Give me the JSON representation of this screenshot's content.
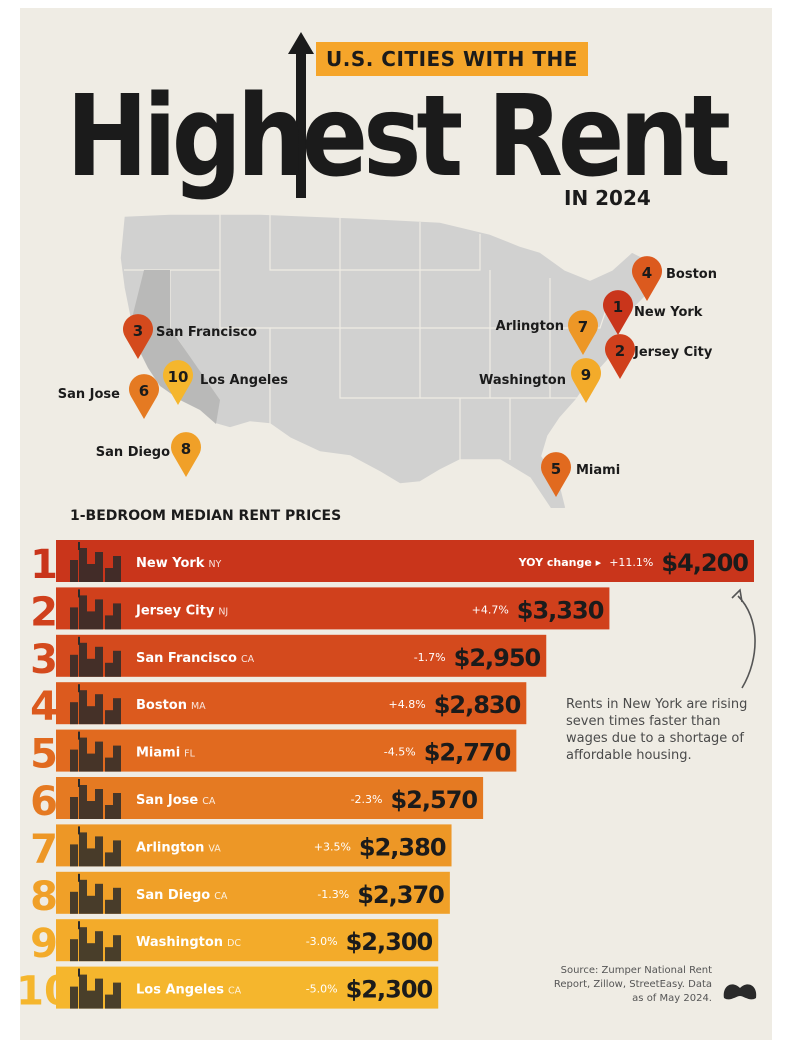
{
  "title": {
    "top": "U.S. CITIES WITH THE",
    "main": "Highest Rent",
    "sub": "IN 2024"
  },
  "map": {
    "pins": [
      {
        "rank": "1",
        "city": "New York",
        "color": "#c9351b"
      },
      {
        "rank": "2",
        "city": "Jersey City",
        "color": "#d0401c"
      },
      {
        "rank": "3",
        "city": "San Francisco",
        "color": "#d44a1d"
      },
      {
        "rank": "4",
        "city": "Boston",
        "color": "#dc5a1e"
      },
      {
        "rank": "5",
        "city": "Miami",
        "color": "#e16a1f"
      },
      {
        "rank": "6",
        "city": "San Jose",
        "color": "#e57a22"
      },
      {
        "rank": "7",
        "city": "Arlington",
        "color": "#ed9726"
      },
      {
        "rank": "8",
        "city": "San Diego",
        "color": "#f0a028"
      },
      {
        "rank": "9",
        "city": "Washington",
        "color": "#f3ab2a"
      },
      {
        "rank": "10",
        "city": "Los Angeles",
        "color": "#f5b62d"
      }
    ]
  },
  "chart_heading": "1-BEDROOM MEDIAN RENT PRICES",
  "yoy_header": "YOY change ▸",
  "chart_data": {
    "type": "bar",
    "orientation": "horizontal",
    "categories": [
      "New York",
      "Jersey City",
      "San Francisco",
      "Boston",
      "Miami",
      "San Jose",
      "Arlington",
      "San Diego",
      "Washington",
      "Los Angeles"
    ],
    "states": [
      "NY",
      "NJ",
      "CA",
      "MA",
      "FL",
      "CA",
      "VA",
      "CA",
      "DC",
      "CA"
    ],
    "values": [
      4200,
      3330,
      2950,
      2830,
      2770,
      2570,
      2380,
      2370,
      2300,
      2300
    ],
    "value_labels": [
      "$4,200",
      "$3,330",
      "$2,950",
      "$2,830",
      "$2,770",
      "$2,570",
      "$2,380",
      "$2,370",
      "$2,300",
      "$2,300"
    ],
    "yoy_change": [
      "+11.1%",
      "+4.7%",
      "-1.7%",
      "+4.8%",
      "-4.5%",
      "-2.3%",
      "+3.5%",
      "-1.3%",
      "-3.0%",
      "-5.0%"
    ],
    "ranks": [
      "1",
      "2",
      "3",
      "4",
      "5",
      "6",
      "7",
      "8",
      "9",
      "10"
    ],
    "colors": [
      "#c9351b",
      "#d0401c",
      "#d44a1d",
      "#dc5a1e",
      "#e16a1f",
      "#e57a22",
      "#ed9726",
      "#f0a028",
      "#f3ab2a",
      "#f5b62d"
    ],
    "rank_colors": [
      "#c9351b",
      "#d0401c",
      "#d44a1d",
      "#dc5a1e",
      "#e16a1f",
      "#e57a22",
      "#ed9726",
      "#f0a028",
      "#f3ab2a",
      "#f5b62d"
    ],
    "title": "1-BEDROOM MEDIAN RENT PRICES"
  },
  "annotation": "Rents in New York are rising seven times faster than wages due to a shortage of affordable housing.",
  "source": "Source: Zumper National Rent Report, Zillow, StreetEasy. Data as of May 2024."
}
